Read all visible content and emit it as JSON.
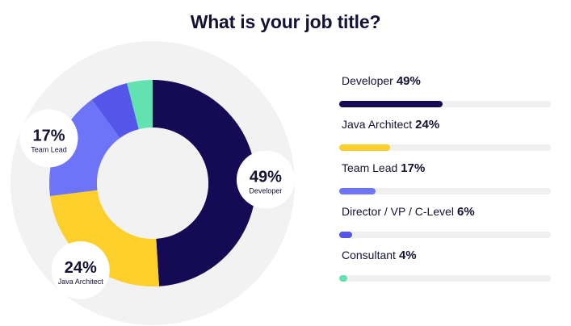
{
  "title": "What is your job title?",
  "chart_data": {
    "type": "pie",
    "title": "What is your job title?",
    "categories": [
      "Developer",
      "Java Architect",
      "Team Lead",
      "Director / VP / C-Level",
      "Consultant"
    ],
    "values": [
      49,
      24,
      17,
      6,
      4
    ],
    "unit": "%",
    "value_labels": [
      "49%",
      "24%",
      "17%",
      "6%",
      "4%"
    ],
    "colors": [
      "#150b55",
      "#fccf2a",
      "#6d74f8",
      "#5356e8",
      "#62e2b1"
    ],
    "track_color": "#f0f0f0",
    "halo_color": "#f2f2f2"
  }
}
